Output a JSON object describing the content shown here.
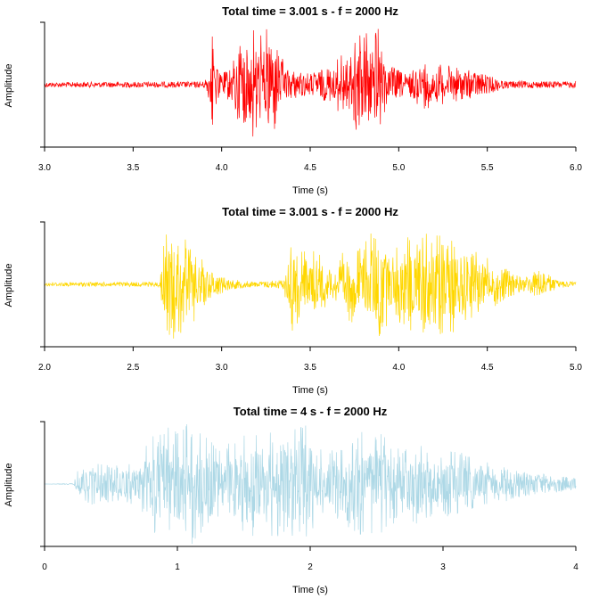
{
  "chart_data": [
    {
      "type": "line",
      "title": "Total time = 3.001 s - f = 2000 Hz",
      "xlabel": "Time (s)",
      "ylabel": "Amplitude",
      "xlim": [
        3.0,
        6.0
      ],
      "xticks": [
        "3.0",
        "3.5",
        "4.0",
        "4.5",
        "5.0",
        "5.5",
        "6.0"
      ],
      "color": "#ff0000",
      "envelope": [
        {
          "x": 3.0,
          "amp": 0.04
        },
        {
          "x": 3.9,
          "amp": 0.05
        },
        {
          "x": 3.93,
          "amp": 0.25
        },
        {
          "x": 3.95,
          "amp": 1.0
        },
        {
          "x": 3.99,
          "amp": 0.15
        },
        {
          "x": 4.06,
          "amp": 0.3
        },
        {
          "x": 4.1,
          "amp": 0.9
        },
        {
          "x": 4.18,
          "amp": 1.0
        },
        {
          "x": 4.3,
          "amp": 0.85
        },
        {
          "x": 4.36,
          "amp": 0.25
        },
        {
          "x": 4.5,
          "amp": 0.18
        },
        {
          "x": 4.62,
          "amp": 0.3
        },
        {
          "x": 4.72,
          "amp": 0.7
        },
        {
          "x": 4.8,
          "amp": 1.0
        },
        {
          "x": 4.88,
          "amp": 0.95
        },
        {
          "x": 4.93,
          "amp": 0.35
        },
        {
          "x": 5.05,
          "amp": 0.15
        },
        {
          "x": 5.13,
          "amp": 0.4
        },
        {
          "x": 5.28,
          "amp": 0.3
        },
        {
          "x": 5.45,
          "amp": 0.2
        },
        {
          "x": 5.6,
          "amp": 0.06
        },
        {
          "x": 6.0,
          "amp": 0.05
        }
      ]
    },
    {
      "type": "line",
      "title": "Total time = 3.001 s - f = 2000 Hz",
      "xlabel": "Time (s)",
      "ylabel": "Amplitude",
      "xlim": [
        2.0,
        5.0
      ],
      "xticks": [
        "2.0",
        "2.5",
        "3.0",
        "3.5",
        "4.0",
        "4.5",
        "5.0"
      ],
      "color": "#ffd700",
      "envelope": [
        {
          "x": 2.0,
          "amp": 0.03
        },
        {
          "x": 2.65,
          "amp": 0.04
        },
        {
          "x": 2.68,
          "amp": 0.8
        },
        {
          "x": 2.75,
          "amp": 0.9
        },
        {
          "x": 2.85,
          "amp": 0.6
        },
        {
          "x": 2.92,
          "amp": 0.25
        },
        {
          "x": 3.05,
          "amp": 0.08
        },
        {
          "x": 3.2,
          "amp": 0.04
        },
        {
          "x": 3.35,
          "amp": 0.08
        },
        {
          "x": 3.4,
          "amp": 0.9
        },
        {
          "x": 3.46,
          "amp": 0.6
        },
        {
          "x": 3.55,
          "amp": 0.5
        },
        {
          "x": 3.63,
          "amp": 0.25
        },
        {
          "x": 3.7,
          "amp": 0.6
        },
        {
          "x": 3.8,
          "amp": 0.65
        },
        {
          "x": 3.88,
          "amp": 1.0
        },
        {
          "x": 3.95,
          "amp": 0.55
        },
        {
          "x": 4.02,
          "amp": 0.7
        },
        {
          "x": 4.12,
          "amp": 0.9
        },
        {
          "x": 4.25,
          "amp": 0.85
        },
        {
          "x": 4.4,
          "amp": 0.65
        },
        {
          "x": 4.55,
          "amp": 0.35
        },
        {
          "x": 4.7,
          "amp": 0.1
        },
        {
          "x": 4.8,
          "amp": 0.25
        },
        {
          "x": 4.9,
          "amp": 0.06
        },
        {
          "x": 5.0,
          "amp": 0.04
        }
      ]
    },
    {
      "type": "line",
      "title": "Total time = 4 s - f = 2000 Hz",
      "xlabel": "Time (s)",
      "ylabel": "Amplitude",
      "xlim": [
        0,
        4
      ],
      "xticks": [
        "0",
        "1",
        "2",
        "3",
        "4"
      ],
      "color": "#add8e6",
      "envelope": [
        {
          "x": 0.0,
          "amp": 0.0
        },
        {
          "x": 0.22,
          "amp": 0.01
        },
        {
          "x": 0.25,
          "amp": 0.25
        },
        {
          "x": 0.35,
          "amp": 0.35
        },
        {
          "x": 0.55,
          "amp": 0.3
        },
        {
          "x": 0.7,
          "amp": 0.35
        },
        {
          "x": 0.85,
          "amp": 0.95
        },
        {
          "x": 1.0,
          "amp": 1.0
        },
        {
          "x": 1.15,
          "amp": 0.95
        },
        {
          "x": 1.3,
          "amp": 0.6
        },
        {
          "x": 1.45,
          "amp": 0.7
        },
        {
          "x": 1.55,
          "amp": 0.9
        },
        {
          "x": 1.7,
          "amp": 0.85
        },
        {
          "x": 1.8,
          "amp": 0.95
        },
        {
          "x": 2.0,
          "amp": 0.98
        },
        {
          "x": 2.1,
          "amp": 0.5
        },
        {
          "x": 2.25,
          "amp": 0.6
        },
        {
          "x": 2.35,
          "amp": 0.85
        },
        {
          "x": 2.55,
          "amp": 0.8
        },
        {
          "x": 2.7,
          "amp": 0.5
        },
        {
          "x": 2.8,
          "amp": 0.8
        },
        {
          "x": 2.95,
          "amp": 0.5
        },
        {
          "x": 3.1,
          "amp": 0.55
        },
        {
          "x": 3.25,
          "amp": 0.4
        },
        {
          "x": 3.45,
          "amp": 0.3
        },
        {
          "x": 3.6,
          "amp": 0.2
        },
        {
          "x": 3.8,
          "amp": 0.15
        },
        {
          "x": 4.0,
          "amp": 0.1
        }
      ]
    }
  ]
}
